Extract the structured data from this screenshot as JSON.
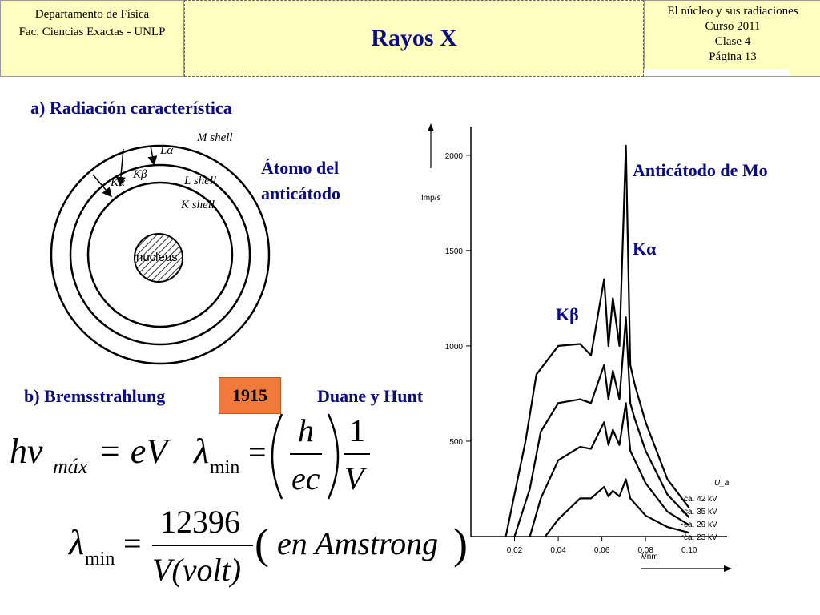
{
  "header": {
    "left_line1": "Departamento de Física",
    "left_line2": "Fac. Ciencias Exactas - UNLP",
    "title": "Rayos X",
    "right_line1": "El núcleo y sus radiaciones",
    "right_line2": "Curso 2011",
    "right_line3": "Clase 4",
    "right_line4": "Página 13"
  },
  "section_a": "a) Radiación característica",
  "atom_label_line1": "Átomo del",
  "atom_label_line2": "anticátodo",
  "atom_diagram": {
    "m_shell": "M shell",
    "l_shell": "L shell",
    "k_shell": "K shell",
    "nucleus": "nucleus",
    "l_alpha": "Lα",
    "k_alpha": "Kα",
    "k_beta": "Kβ"
  },
  "anticathode_label": "Anticátodo de Mo",
  "k_alpha_label": "Kα",
  "k_beta_label": "Kβ",
  "section_b": "b) Bremsstrahlung",
  "year": "1915",
  "authors": "Duane y Hunt",
  "equations": {
    "eq1_left": "hν",
    "eq1_sub": "máx",
    "eq1_right": "= eV",
    "lambda": "λ",
    "min": "min",
    "equals": "=",
    "h": "h",
    "ec": "ec",
    "one": "1",
    "V": "V",
    "num": "12396",
    "den": "V(volt)",
    "paren_text": "en Amstrong"
  },
  "chart_data": {
    "type": "line",
    "ylabel": "Imp/s",
    "xlabel": "λ/nm",
    "xlim": [
      0.0,
      0.11
    ],
    "ylim": [
      0,
      2100
    ],
    "x_ticks": [
      "0,02",
      "0,04",
      "0,06",
      "0,08",
      "0,10"
    ],
    "y_ticks": [
      "500",
      "1000",
      "1500",
      "2000"
    ],
    "legend_title": "U_a",
    "series": [
      {
        "name": "ca. 42 kV",
        "x": [
          0.016,
          0.025,
          0.03,
          0.04,
          0.05,
          0.055,
          0.061,
          0.063,
          0.065,
          0.068,
          0.071,
          0.073,
          0.075,
          0.08,
          0.09,
          0.1
        ],
        "values": [
          0,
          500,
          850,
          1000,
          1010,
          950,
          1350,
          1000,
          1250,
          1000,
          2050,
          900,
          800,
          600,
          300,
          150
        ]
      },
      {
        "name": "ca. 35 kV",
        "x": [
          0.02,
          0.027,
          0.032,
          0.04,
          0.05,
          0.055,
          0.061,
          0.063,
          0.065,
          0.068,
          0.071,
          0.073,
          0.075,
          0.08,
          0.09,
          0.1
        ],
        "values": [
          0,
          250,
          550,
          700,
          720,
          700,
          900,
          720,
          870,
          720,
          1150,
          700,
          620,
          450,
          220,
          100
        ]
      },
      {
        "name": "ca. 29 kV",
        "x": [
          0.027,
          0.032,
          0.04,
          0.05,
          0.055,
          0.061,
          0.063,
          0.065,
          0.068,
          0.071,
          0.073,
          0.08,
          0.09,
          0.1
        ],
        "values": [
          0,
          200,
          400,
          470,
          460,
          600,
          480,
          560,
          480,
          700,
          450,
          280,
          130,
          60
        ]
      },
      {
        "name": "ca. 23 kV",
        "x": [
          0.034,
          0.04,
          0.05,
          0.055,
          0.061,
          0.063,
          0.065,
          0.068,
          0.071,
          0.073,
          0.08,
          0.09,
          0.1
        ],
        "values": [
          0,
          90,
          200,
          200,
          260,
          210,
          240,
          210,
          300,
          200,
          110,
          50,
          20
        ]
      }
    ]
  }
}
